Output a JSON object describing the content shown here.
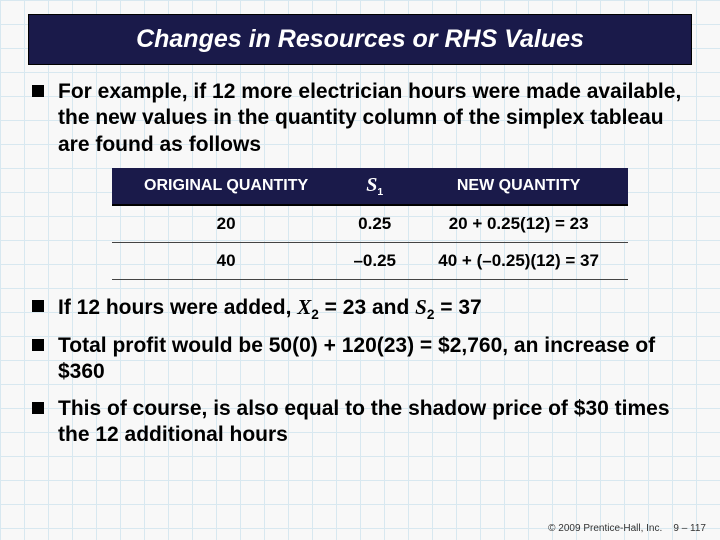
{
  "title": "Changes in Resources or RHS Values",
  "bullets": {
    "b1": "For example, if 12 more electrician hours were made available, the new values in the quantity column of the simplex tableau are found as follows",
    "b2_pre": "If 12 hours were added, ",
    "b2_x": "X",
    "b2_xs": "2",
    "b2_mid1": " = 23 and ",
    "b2_s": "S",
    "b2_ss": "2",
    "b2_post": " = 37",
    "b3": "Total profit would be 50(0) + 120(23) = $2,760, an increase of $360",
    "b4": "This of course, is also equal to the shadow price of $30 times the 12 additional hours"
  },
  "table": {
    "headers": {
      "h1": "ORIGINAL QUANTITY",
      "h2_sym": "S",
      "h2_sub": "1",
      "h3": "NEW QUANTITY"
    },
    "rows": [
      {
        "c1": "20",
        "c2": "0.25",
        "c3": "20 + 0.25(12) = 23"
      },
      {
        "c1": "40",
        "c2": "–0.25",
        "c3": "40 + (–0.25)(12) = 37"
      }
    ]
  },
  "footer": {
    "copyright": "© 2009 Prentice-Hall, Inc.",
    "page": "9 – 117"
  },
  "colors": {
    "title_bg": "#1a1a4a",
    "title_fg": "#ffffff",
    "grid": "#d8e8f0"
  }
}
